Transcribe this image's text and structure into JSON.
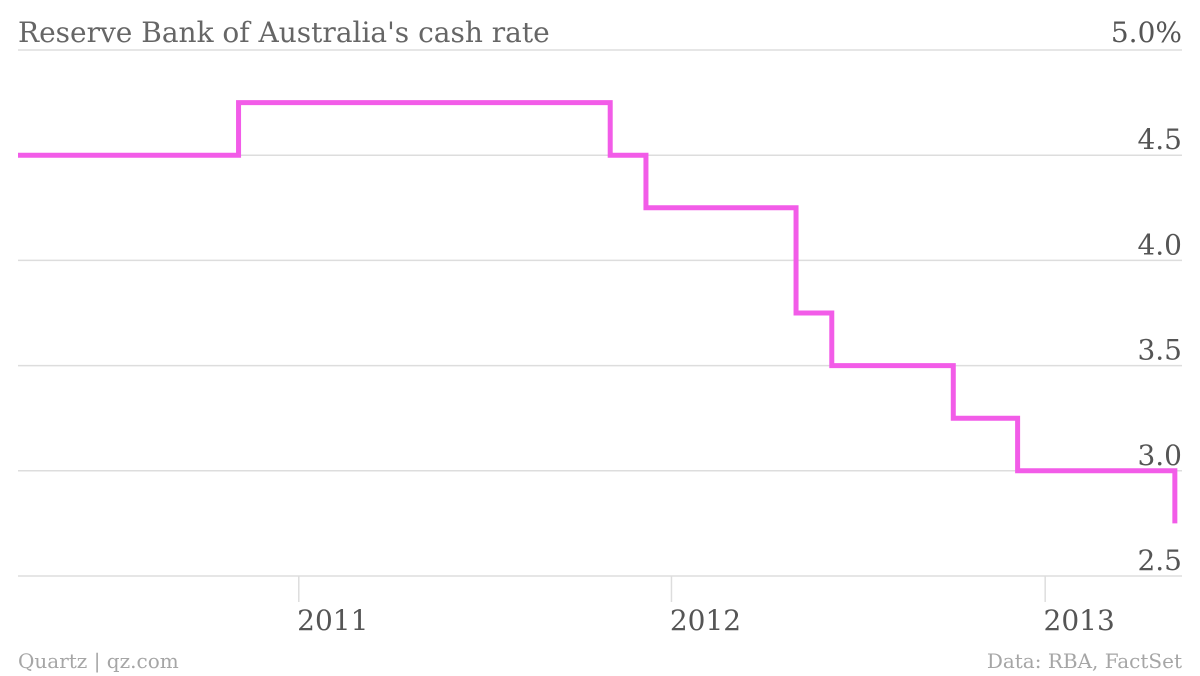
{
  "chart_data": {
    "type": "line",
    "step": true,
    "title": "Reserve Bank of Australia's cash rate",
    "xlabel": "",
    "ylabel": "",
    "ylim": [
      2.5,
      5.0
    ],
    "xlim": [
      "2010-04-01",
      "2013-05-15"
    ],
    "y_ticks": [
      2.5,
      3.0,
      3.5,
      4.0,
      4.5,
      5.0
    ],
    "y_tick_labels": [
      "2.5",
      "3.0",
      "3.5",
      "4.0",
      "4.5",
      "5.0%"
    ],
    "x_ticks": [
      "2011-01-01",
      "2012-01-01",
      "2013-01-01"
    ],
    "x_tick_labels": [
      "2011",
      "2012",
      "2013"
    ],
    "grid": true,
    "line_color": "#f25ce8",
    "series": [
      {
        "x": [
          "2010-04-01",
          "2010-11-03",
          "2011-11-02",
          "2011-12-07",
          "2012-05-02",
          "2012-06-06",
          "2012-10-03",
          "2012-12-05",
          "2013-05-08"
        ],
        "values": [
          4.5,
          4.75,
          4.5,
          4.25,
          3.75,
          3.5,
          3.25,
          3.0,
          2.75
        ],
        "end_x": "2013-05-08"
      }
    ]
  },
  "footer": {
    "source_left": "Quartz | qz.com",
    "source_right": "Data: RBA, FactSet"
  }
}
